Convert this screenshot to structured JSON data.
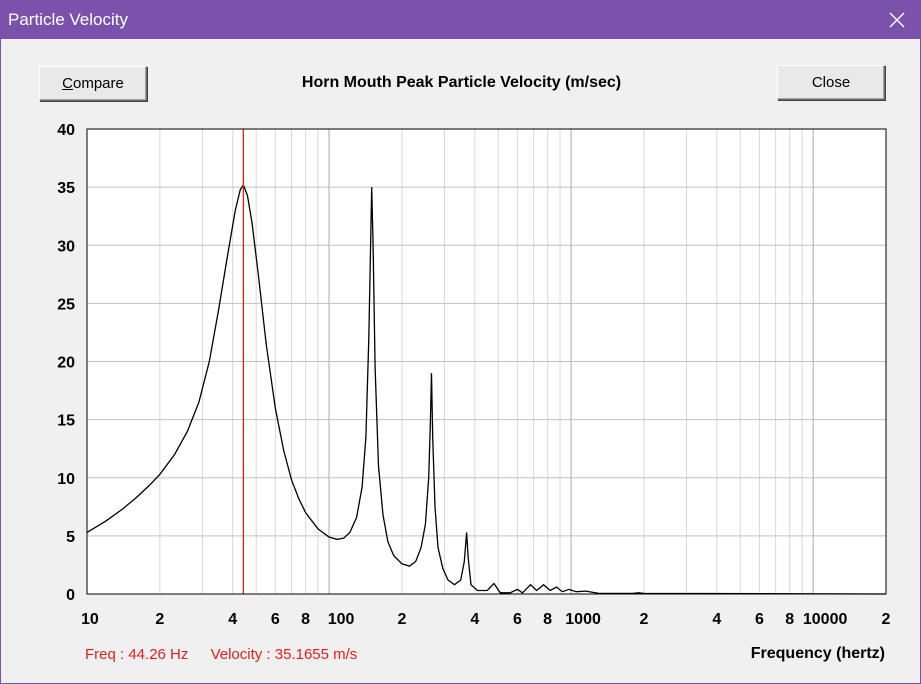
{
  "window": {
    "title": "Particle Velocity"
  },
  "buttons": {
    "compare": "Compare",
    "close": "Close"
  },
  "readout": {
    "freq": "Freq : 44.26 Hz",
    "velocity": "Velocity : 35.1655 m/s"
  },
  "colors": {
    "titlebar": "#7a52ab",
    "cursor": "#e02020",
    "trace": "#000000",
    "grid": "#c0c0c0"
  },
  "chart_data": {
    "type": "line",
    "title": "Horn Mouth Peak Particle Velocity (m/sec)",
    "xlabel": "Frequency (hertz)",
    "ylabel": "",
    "xscale": "log",
    "xlim": [
      10,
      20000
    ],
    "ylim": [
      0,
      40
    ],
    "grid": true,
    "yticks": [
      "0",
      "5",
      "10",
      "15",
      "20",
      "25",
      "30",
      "35",
      "40"
    ],
    "xticks": [
      {
        "v": 10,
        "t": "10"
      },
      {
        "v": 20,
        "t": "2"
      },
      {
        "v": 40,
        "t": "4"
      },
      {
        "v": 60,
        "t": "6"
      },
      {
        "v": 80,
        "t": "8"
      },
      {
        "v": 100,
        "t": "100"
      },
      {
        "v": 200,
        "t": "2"
      },
      {
        "v": 400,
        "t": "4"
      },
      {
        "v": 600,
        "t": "6"
      },
      {
        "v": 800,
        "t": "8"
      },
      {
        "v": 1000,
        "t": "1000"
      },
      {
        "v": 2000,
        "t": "2"
      },
      {
        "v": 4000,
        "t": "4"
      },
      {
        "v": 6000,
        "t": "6"
      },
      {
        "v": 8000,
        "t": "8"
      },
      {
        "v": 10000,
        "t": "10000"
      },
      {
        "v": 20000,
        "t": "2"
      }
    ],
    "cursor_x": 44.26,
    "series": [
      {
        "name": "Peak Particle Velocity",
        "points": [
          [
            10,
            5.3
          ],
          [
            12,
            6.3
          ],
          [
            14,
            7.3
          ],
          [
            16,
            8.3
          ],
          [
            18,
            9.3
          ],
          [
            20,
            10.3
          ],
          [
            23,
            12.0
          ],
          [
            26,
            14.0
          ],
          [
            29,
            16.5
          ],
          [
            32,
            20.0
          ],
          [
            35,
            24.5
          ],
          [
            38,
            29.0
          ],
          [
            41,
            33.0
          ],
          [
            43,
            34.8
          ],
          [
            44.26,
            35.17
          ],
          [
            46,
            34.3
          ],
          [
            48,
            32.0
          ],
          [
            51,
            27.5
          ],
          [
            55,
            21.5
          ],
          [
            60,
            16.0
          ],
          [
            65,
            12.3
          ],
          [
            70,
            9.8
          ],
          [
            75,
            8.2
          ],
          [
            80,
            7.0
          ],
          [
            90,
            5.6
          ],
          [
            100,
            4.9
          ],
          [
            108,
            4.7
          ],
          [
            115,
            4.8
          ],
          [
            122,
            5.3
          ],
          [
            130,
            6.6
          ],
          [
            137,
            9.2
          ],
          [
            142,
            13.5
          ],
          [
            146,
            22.0
          ],
          [
            148.5,
            30.0
          ],
          [
            150,
            35.0
          ],
          [
            152,
            30.0
          ],
          [
            155,
            19.5
          ],
          [
            160,
            11.0
          ],
          [
            167,
            6.8
          ],
          [
            175,
            4.5
          ],
          [
            185,
            3.3
          ],
          [
            200,
            2.6
          ],
          [
            215,
            2.4
          ],
          [
            228,
            2.8
          ],
          [
            240,
            4.0
          ],
          [
            250,
            6.0
          ],
          [
            258,
            10.0
          ],
          [
            262,
            14.5
          ],
          [
            265,
            19.0
          ],
          [
            268,
            13.5
          ],
          [
            274,
            7.5
          ],
          [
            282,
            4.0
          ],
          [
            295,
            2.2
          ],
          [
            310,
            1.2
          ],
          [
            330,
            0.8
          ],
          [
            350,
            1.2
          ],
          [
            362,
            2.8
          ],
          [
            370,
            5.3
          ],
          [
            376,
            3.0
          ],
          [
            386,
            0.8
          ],
          [
            410,
            0.3
          ],
          [
            450,
            0.3
          ],
          [
            480,
            0.9
          ],
          [
            510,
            0.1
          ],
          [
            560,
            0.1
          ],
          [
            600,
            0.4
          ],
          [
            630,
            0.1
          ],
          [
            680,
            0.8
          ],
          [
            720,
            0.3
          ],
          [
            770,
            0.8
          ],
          [
            820,
            0.3
          ],
          [
            870,
            0.6
          ],
          [
            920,
            0.2
          ],
          [
            980,
            0.4
          ],
          [
            1050,
            0.2
          ],
          [
            1150,
            0.25
          ],
          [
            1300,
            0.05
          ],
          [
            1800,
            0.05
          ],
          [
            1900,
            0.1
          ],
          [
            2000,
            0.05
          ],
          [
            20000,
            0.0
          ]
        ]
      }
    ]
  }
}
